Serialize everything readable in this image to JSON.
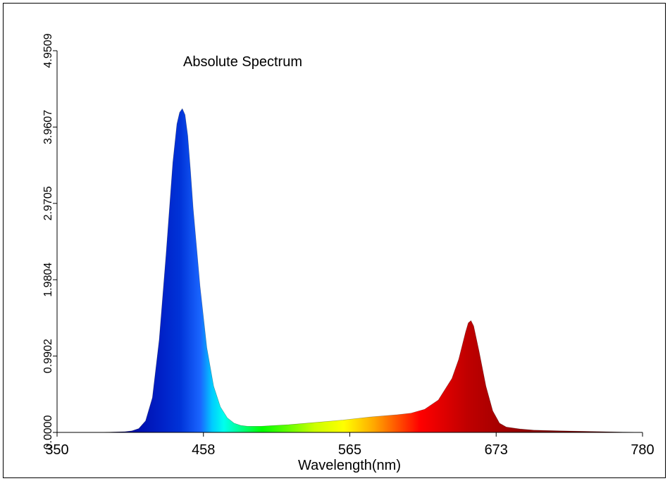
{
  "chart_data": {
    "type": "area",
    "title": "Absolute Spectrum",
    "xlabel": "Wavelength(nm)",
    "ylabel": "",
    "xlim": [
      350,
      780
    ],
    "ylim": [
      0,
      4.9509
    ],
    "x_ticks": [
      "350",
      "458",
      "565",
      "673",
      "780"
    ],
    "y_ticks": [
      "0.0000",
      "0.9902",
      "1.9804",
      "2.9705",
      "3.9607",
      "4.9509"
    ],
    "grid": false,
    "legend": "none",
    "fill": "visible-spectrum gradient",
    "series": [
      {
        "x": [
          350,
          380,
          400,
          405,
          410,
          415,
          420,
          425,
          430,
          435,
          438,
          440,
          442,
          444,
          446,
          448,
          450,
          455,
          460,
          465,
          470,
          475,
          480,
          485,
          490,
          500,
          520,
          540,
          560,
          580,
          600,
          610,
          620,
          630,
          640,
          645,
          650,
          652,
          654,
          656,
          660,
          665,
          670,
          675,
          680,
          690,
          700,
          720,
          750,
          780
        ],
        "y": [
          0.0,
          0.0,
          0.01,
          0.02,
          0.05,
          0.15,
          0.45,
          1.2,
          2.3,
          3.5,
          4.0,
          4.15,
          4.2,
          4.12,
          3.85,
          3.4,
          2.9,
          1.9,
          1.1,
          0.6,
          0.33,
          0.19,
          0.12,
          0.09,
          0.08,
          0.08,
          0.1,
          0.13,
          0.16,
          0.2,
          0.23,
          0.25,
          0.3,
          0.42,
          0.7,
          0.95,
          1.3,
          1.42,
          1.45,
          1.38,
          1.05,
          0.6,
          0.28,
          0.12,
          0.07,
          0.045,
          0.03,
          0.02,
          0.01,
          0.0
        ]
      }
    ]
  }
}
